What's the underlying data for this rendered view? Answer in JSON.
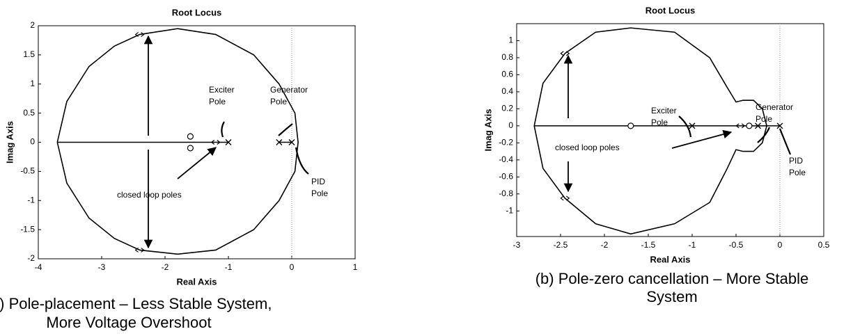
{
  "chart_data": [
    {
      "type": "rootlocus",
      "title": "Root Locus",
      "xlabel": "Real Axis",
      "ylabel": "Imag Axis",
      "xlim": [
        -4,
        1
      ],
      "ylim": [
        -2,
        2
      ],
      "xticks": [
        -4,
        -3,
        -2,
        -1,
        0,
        1
      ],
      "yticks": [
        -2,
        -1.5,
        -1,
        -0.5,
        0,
        0.5,
        1,
        1.5,
        2
      ],
      "series": [
        {
          "color": "#000000",
          "x": [
            -3.7,
            -3.55,
            -3.2,
            -2.8,
            -2.4,
            -1.8,
            -1.2,
            -0.6,
            -0.2,
            0.05,
            0.1,
            0.05,
            -0.2,
            -0.6,
            -1.2,
            -1.8,
            -2.4,
            -2.8,
            -3.2,
            -3.55,
            -3.7
          ],
          "y": [
            0,
            0.7,
            1.3,
            1.65,
            1.85,
            1.95,
            1.85,
            1.5,
            1.0,
            0.5,
            0,
            -0.5,
            -1.0,
            -1.5,
            -1.85,
            -1.92,
            -1.85,
            -1.65,
            -1.3,
            -0.7,
            0
          ]
        },
        {
          "color": "#000000",
          "x": [
            -3.7,
            -1.0
          ],
          "y": [
            0,
            0
          ]
        },
        {
          "color": "#000000",
          "x": [
            -0.2,
            0
          ],
          "y": [
            0,
            0
          ]
        }
      ],
      "poles": {
        "x": [
          -1.0,
          -0.2,
          0
        ],
        "y": [
          0,
          0,
          0
        ]
      },
      "zeros": {
        "x": [
          -1.6,
          -1.6
        ],
        "y": [
          0.1,
          -0.1
        ]
      },
      "closed_loop_poles": {
        "x": [
          -2.4,
          -2.4,
          -1.2
        ],
        "y": [
          1.85,
          -1.85,
          0
        ]
      },
      "annotations": [
        {
          "lines": [
            "Exciter",
            "Pole"
          ]
        },
        {
          "lines": [
            "Generator",
            "Pole"
          ]
        },
        {
          "lines": [
            "PID",
            "Pole"
          ]
        },
        {
          "lines": [
            "closed loop poles"
          ]
        }
      ],
      "caption": [
        "(a) Pole-placement – Less Stable System,",
        "More Voltage Overshoot"
      ]
    },
    {
      "type": "rootlocus",
      "title": "Root Locus",
      "xlabel": "Real Axis",
      "ylabel": "Imag Axis",
      "xlim": [
        -3,
        0.5
      ],
      "ylim": [
        -1.3,
        1.2
      ],
      "xticks": [
        -3,
        -2.5,
        -2,
        -1.5,
        -1,
        -0.5,
        0,
        0.5
      ],
      "yticks": [
        -1,
        -0.8,
        -0.6,
        -0.4,
        -0.2,
        0,
        0.2,
        0.4,
        0.6,
        0.8,
        1
      ],
      "series": [
        {
          "color": "#000000",
          "x": [
            -2.8,
            -2.7,
            -2.45,
            -2.1,
            -1.7,
            -1.2,
            -0.8,
            -0.6,
            -0.5,
            -0.42,
            -0.3,
            -0.2,
            -0.15,
            -0.2,
            -0.3,
            -0.42,
            -0.5,
            -0.6,
            -0.8,
            -1.2,
            -1.7,
            -2.1,
            -2.45,
            -2.7,
            -2.8
          ],
          "y": [
            0,
            0.5,
            0.85,
            1.1,
            1.15,
            1.1,
            0.8,
            0.45,
            0.28,
            0.3,
            0.3,
            0.2,
            0,
            -0.2,
            -0.3,
            -0.3,
            -0.28,
            -0.5,
            -0.9,
            -1.15,
            -1.27,
            -1.15,
            -0.85,
            -0.5,
            0
          ]
        },
        {
          "color": "#000000",
          "x": [
            -2.8,
            0
          ],
          "y": [
            0,
            0
          ]
        }
      ],
      "poles": {
        "x": [
          -1.0,
          -0.25,
          0
        ],
        "y": [
          0,
          0,
          0
        ]
      },
      "zeros": {
        "x": [
          -1.7,
          -0.35
        ],
        "y": [
          0,
          0
        ]
      },
      "closed_loop_poles": {
        "x": [
          -2.45,
          -2.45,
          -0.45
        ],
        "y": [
          0.85,
          -0.85,
          0
        ]
      },
      "annotations": [
        {
          "lines": [
            "Exciter",
            "Pole"
          ]
        },
        {
          "lines": [
            "Generator",
            "Pole"
          ]
        },
        {
          "lines": [
            "PID",
            "Pole"
          ]
        },
        {
          "lines": [
            "closed loop poles"
          ]
        }
      ],
      "caption": [
        "(b) Pole-zero cancellation – More Stable",
        "System"
      ]
    }
  ]
}
